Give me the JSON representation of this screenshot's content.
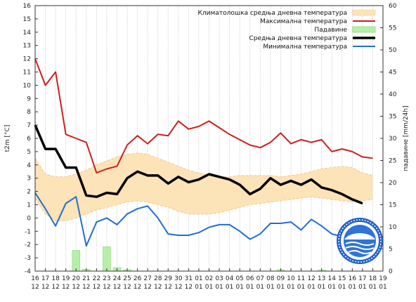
{
  "chart_data": {
    "type": "line",
    "title": "",
    "ylabel": "t2m [°C]",
    "y2label": "падавине [mm/24h]",
    "ylim": [
      -4,
      16
    ],
    "y2lim": [
      0,
      60
    ],
    "yticks": [
      -4,
      -3,
      -2,
      -1,
      0,
      1,
      2,
      3,
      4,
      5,
      6,
      7,
      8,
      9,
      10,
      11,
      12,
      13,
      14,
      15,
      16
    ],
    "y2ticks": [
      0,
      5,
      10,
      15,
      20,
      25,
      30,
      35,
      40,
      45,
      50,
      55,
      60
    ],
    "x_days": [
      "16",
      "17",
      "18",
      "19",
      "20",
      "21",
      "22",
      "23",
      "24",
      "25",
      "26",
      "27",
      "28",
      "29",
      "30",
      "31",
      "01",
      "02",
      "03",
      "04",
      "05",
      "06",
      "07",
      "08",
      "09",
      "10",
      "11",
      "12",
      "13",
      "14",
      "15",
      "16",
      "17",
      "18",
      "19"
    ],
    "x_months": [
      "12",
      "12",
      "12",
      "12",
      "12",
      "12",
      "12",
      "12",
      "12",
      "12",
      "12",
      "12",
      "12",
      "12",
      "12",
      "12",
      "01",
      "01",
      "01",
      "01",
      "01",
      "01",
      "01",
      "01",
      "01",
      "01",
      "01",
      "01",
      "01",
      "01",
      "01",
      "01",
      "01",
      "01",
      "01"
    ],
    "grid": "vertical",
    "legend_position": "top-right",
    "legend": [
      {
        "label": "Климатолошка средња дневна температура",
        "color": "#fde3b8",
        "kind": "band"
      },
      {
        "label": "Максимална температура",
        "color": "#cc1f1f",
        "kind": "line"
      },
      {
        "label": "Падавине",
        "color": "#b6f0a8",
        "kind": "bar"
      },
      {
        "label": "Средња дневна температура",
        "color": "#000000",
        "kind": "line"
      },
      {
        "label": "Минимална температура",
        "color": "#1f6fd1",
        "kind": "line"
      }
    ],
    "climate_band": {
      "lower": [
        1.5,
        0.3,
        -0.2,
        -0.2,
        0.0,
        0.3,
        0.6,
        0.8,
        1.0,
        1.2,
        1.3,
        1.2,
        1.0,
        0.8,
        0.5,
        0.3,
        0.3,
        0.3,
        0.4,
        0.6,
        0.8,
        1.0,
        1.1,
        1.2,
        1.3,
        1.4,
        1.5,
        1.6,
        1.5,
        1.4,
        1.3,
        1.2,
        1.3,
        1.4
      ],
      "upper": [
        4.5,
        3.3,
        3.1,
        3.1,
        3.3,
        3.6,
        4.0,
        4.3,
        4.6,
        4.8,
        4.9,
        4.8,
        4.5,
        4.2,
        3.9,
        3.6,
        3.4,
        3.2,
        3.1,
        3.1,
        3.2,
        3.2,
        3.2,
        3.2,
        3.1,
        3.2,
        3.3,
        3.5,
        3.7,
        3.8,
        3.9,
        3.8,
        3.4,
        3.2
      ]
    },
    "series": [
      {
        "name": "Максимална температура",
        "color": "#cc1f1f",
        "values": [
          12.0,
          10.0,
          11.0,
          6.3,
          6.0,
          5.7,
          3.4,
          3.7,
          3.9,
          5.5,
          6.2,
          5.6,
          6.3,
          6.2,
          7.3,
          6.7,
          6.9,
          7.3,
          6.8,
          6.3,
          5.9,
          5.5,
          5.3,
          5.7,
          6.4,
          5.6,
          5.9,
          5.7,
          5.9,
          5.0,
          5.2,
          5.0,
          4.6,
          4.5
        ]
      },
      {
        "name": "Средња дневна температура",
        "color": "#000000",
        "values": [
          7.0,
          5.2,
          5.2,
          3.8,
          3.8,
          1.7,
          1.6,
          1.9,
          1.8,
          3.0,
          3.5,
          3.2,
          3.2,
          2.6,
          3.1,
          2.7,
          2.9,
          3.3,
          3.1,
          2.9,
          2.5,
          1.8,
          2.2,
          3.0,
          2.5,
          2.8,
          2.5,
          2.9,
          2.3,
          2.1,
          1.8,
          1.4,
          1.1
        ]
      },
      {
        "name": "Минимална температура",
        "color": "#1f6fd1",
        "values": [
          1.9,
          0.7,
          -0.6,
          1.1,
          1.6,
          -2.1,
          -0.3,
          0.0,
          -0.5,
          0.3,
          0.7,
          0.9,
          0.0,
          -1.2,
          -1.3,
          -1.3,
          -1.1,
          -0.7,
          -0.5,
          -0.5,
          -1.0,
          -1.6,
          -1.2,
          -0.4,
          -0.4,
          -0.3,
          -0.9,
          -0.1,
          -0.6,
          -1.2,
          -1.4
        ]
      }
    ],
    "precipitation": {
      "name": "Падавине",
      "color": "#b6f0a8",
      "values": [
        0,
        0,
        0,
        0,
        4.7,
        0.4,
        0,
        5.5,
        0.8,
        0.3,
        0,
        0,
        0,
        0,
        0,
        0,
        0,
        0,
        0,
        0,
        0,
        0,
        0,
        0,
        0.3,
        0,
        0,
        0,
        0.2,
        0,
        0,
        0,
        0,
        0,
        0
      ]
    }
  },
  "logo": {
    "name": "rhmz-logo"
  }
}
